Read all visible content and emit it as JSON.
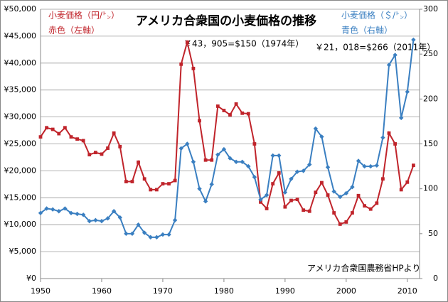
{
  "chart_data": {
    "type": "line",
    "title": "アメリカ合衆国の小麦価格の推移",
    "annotations": [
      "￥43，905=$150（1974年）",
      "￥21，018=$266（2011年）",
      "アメリカ合衆国農務省HPより"
    ],
    "x": [
      1950,
      1951,
      1952,
      1953,
      1954,
      1955,
      1956,
      1957,
      1958,
      1959,
      1960,
      1961,
      1962,
      1963,
      1964,
      1965,
      1966,
      1967,
      1968,
      1969,
      1970,
      1971,
      1972,
      1973,
      1974,
      1975,
      1976,
      1977,
      1978,
      1979,
      1980,
      1981,
      1982,
      1983,
      1984,
      1985,
      1986,
      1987,
      1988,
      1989,
      1990,
      1991,
      1992,
      1993,
      1994,
      1995,
      1996,
      1997,
      1998,
      1999,
      2000,
      2001,
      2002,
      2003,
      2004,
      2005,
      2006,
      2007,
      2008,
      2009,
      2010,
      2011
    ],
    "series": [
      {
        "name": "小麦価格（円/㌧）",
        "note": "赤色（左軸）",
        "color": "#c0242b",
        "marker": "square",
        "values": [
          26300,
          28000,
          27700,
          26900,
          28000,
          26300,
          25900,
          25600,
          23000,
          23400,
          23100,
          24200,
          27000,
          24500,
          18000,
          18000,
          21600,
          18500,
          16500,
          16500,
          17600,
          17600,
          18200,
          39800,
          43905,
          39000,
          29300,
          22000,
          22000,
          32000,
          31200,
          30400,
          32400,
          30700,
          30600,
          25000,
          14200,
          13000,
          17600,
          19600,
          13300,
          14500,
          14700,
          12700,
          12500,
          16000,
          17800,
          15500,
          12200,
          10100,
          10500,
          12200,
          15400,
          13500,
          12900,
          14000,
          18500,
          27000,
          25000,
          16500,
          17900,
          21018
        ]
      },
      {
        "name": "小麦価格（＄/㌧）",
        "note": "青色（右軸）",
        "color": "#3a7fc1",
        "marker": "diamond",
        "axis": "y2",
        "values": [
          73,
          78,
          77,
          75,
          78,
          73,
          72,
          71,
          64,
          65,
          64,
          67,
          75,
          68,
          50,
          50,
          60,
          51,
          46,
          46,
          49,
          49,
          65,
          145,
          150,
          130,
          100,
          86,
          105,
          138,
          144,
          134,
          130,
          130,
          125,
          113,
          88,
          93,
          137,
          137,
          96,
          111,
          119,
          120,
          127,
          167,
          158,
          124,
          97,
          91,
          95,
          102,
          131,
          125,
          125,
          126,
          157,
          238,
          249,
          179,
          208,
          266
        ]
      }
    ],
    "xlim": [
      1950,
      2012
    ],
    "xticks": [
      1950,
      1960,
      1970,
      1980,
      1990,
      2000,
      2010
    ],
    "ylim": [
      0,
      50000
    ],
    "yticks": [
      {
        "value": 0,
        "label": "¥0"
      },
      {
        "value": 5000,
        "label": "¥5,000"
      },
      {
        "value": 10000,
        "label": "¥10,000"
      },
      {
        "value": 15000,
        "label": "¥15,000"
      },
      {
        "value": 20000,
        "label": "¥20,000"
      },
      {
        "value": 25000,
        "label": "¥25,000"
      },
      {
        "value": 30000,
        "label": "¥30,000"
      },
      {
        "value": 35000,
        "label": "¥35,000"
      },
      {
        "value": 40000,
        "label": "¥40,000"
      },
      {
        "value": 45000,
        "label": "¥45,000"
      },
      {
        "value": 50000,
        "label": "¥50,000"
      }
    ],
    "y2lim": [
      0,
      300
    ],
    "y2ticks": [
      0,
      50,
      100,
      150,
      200,
      250,
      300
    ],
    "grid": true
  }
}
